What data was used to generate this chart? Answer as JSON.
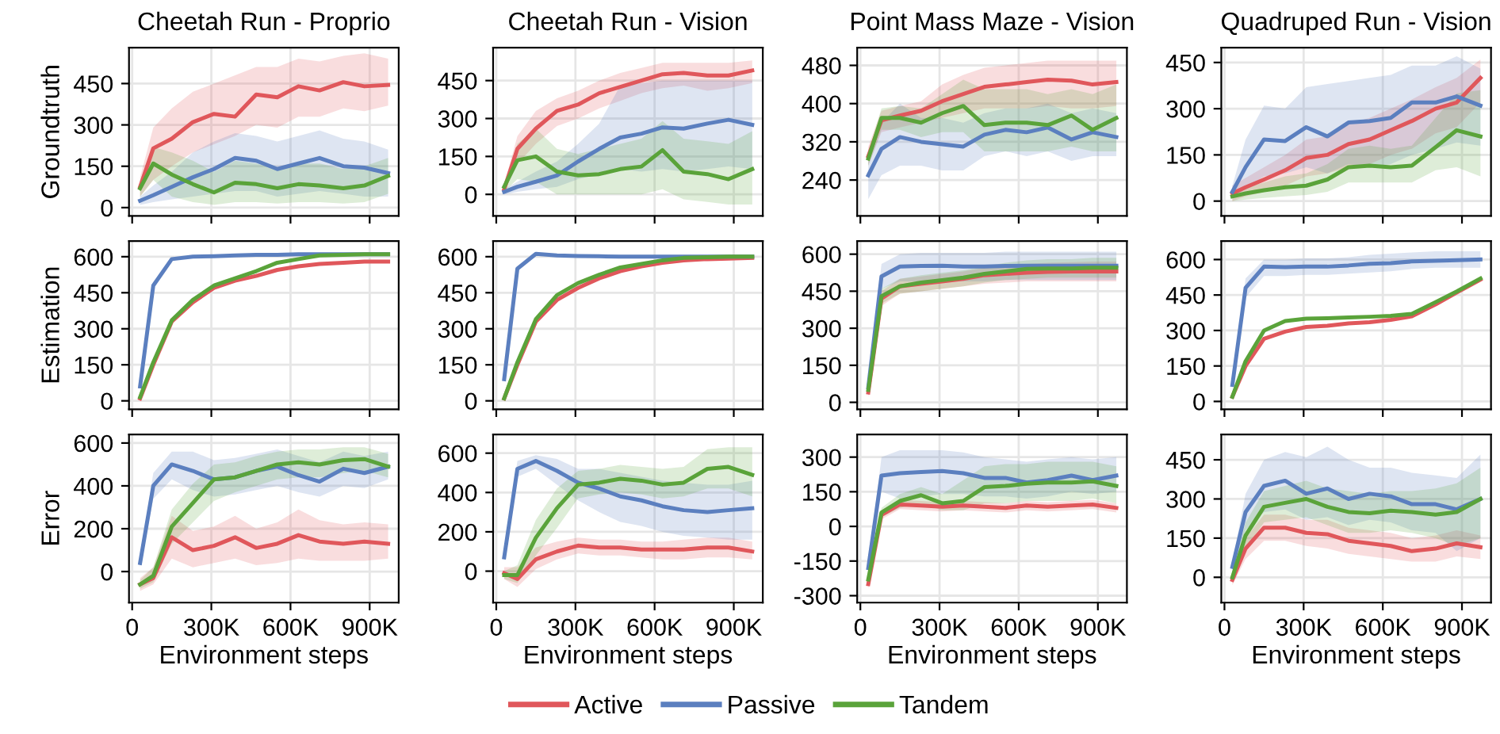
{
  "chart_data": [
    {
      "type": "line",
      "title": "Cheetah Run - Proprio",
      "ylabel": "Groundtruth",
      "x": [
        30000,
        80000,
        150000,
        230000,
        310000,
        390000,
        470000,
        550000,
        630000,
        710000,
        800000,
        880000,
        970000
      ],
      "xlim": [
        -12000,
        1010000
      ],
      "xticks": [
        {
          "value": 0,
          "label": null
        },
        {
          "value": 300000,
          "label": null
        },
        {
          "value": 600000,
          "label": null
        },
        {
          "value": 900000,
          "label": null
        }
      ],
      "ylim": [
        -30,
        580
      ],
      "yticks": [
        0,
        150,
        300,
        450
      ],
      "tick_labels": "y",
      "grid": true,
      "legend": "bottom",
      "series": [
        {
          "name": "Active",
          "color": "#e0575b",
          "values": [
            75,
            215,
            250,
            310,
            340,
            330,
            410,
            400,
            440,
            425,
            455,
            440,
            445
          ],
          "lower": [
            40,
            100,
            150,
            200,
            230,
            260,
            300,
            290,
            330,
            330,
            360,
            350,
            370
          ],
          "upper": [
            110,
            290,
            360,
            420,
            450,
            480,
            510,
            510,
            540,
            530,
            550,
            560,
            540
          ]
        },
        {
          "name": "Passive",
          "color": "#5b7fbf",
          "values": [
            25,
            45,
            75,
            110,
            140,
            180,
            170,
            140,
            160,
            180,
            150,
            145,
            125
          ],
          "lower": [
            10,
            20,
            30,
            40,
            50,
            60,
            60,
            40,
            50,
            60,
            50,
            40,
            40
          ],
          "upper": [
            40,
            80,
            130,
            200,
            240,
            270,
            260,
            240,
            260,
            280,
            250,
            240,
            210
          ]
        },
        {
          "name": "Tandem",
          "color": "#5aa33a",
          "values": [
            70,
            160,
            120,
            85,
            55,
            90,
            85,
            70,
            85,
            80,
            70,
            80,
            115
          ],
          "lower": [
            40,
            100,
            40,
            20,
            10,
            20,
            20,
            15,
            20,
            20,
            15,
            20,
            50
          ],
          "upper": [
            100,
            220,
            200,
            170,
            130,
            170,
            160,
            140,
            160,
            160,
            140,
            150,
            180
          ]
        }
      ]
    },
    {
      "type": "line",
      "title": "Cheetah Run - Vision",
      "x": [
        30000,
        80000,
        150000,
        230000,
        310000,
        390000,
        470000,
        550000,
        630000,
        710000,
        800000,
        880000,
        970000
      ],
      "xlim": [
        -12000,
        1010000
      ],
      "xticks": [
        {
          "value": 0,
          "label": null
        },
        {
          "value": 300000,
          "label": null
        },
        {
          "value": 600000,
          "label": null
        },
        {
          "value": 900000,
          "label": null
        }
      ],
      "ylim": [
        -85,
        580
      ],
      "yticks": [
        0,
        150,
        300,
        450
      ],
      "tick_labels": "y",
      "grid": true,
      "series": [
        {
          "color": "#e0575b",
          "values": [
            20,
            180,
            260,
            330,
            355,
            400,
            425,
            450,
            475,
            480,
            470,
            470,
            490
          ],
          "lower": [
            10,
            120,
            200,
            270,
            300,
            340,
            370,
            400,
            420,
            430,
            410,
            420,
            440
          ],
          "upper": [
            40,
            230,
            330,
            380,
            410,
            450,
            480,
            500,
            520,
            520,
            520,
            520,
            530
          ]
        },
        {
          "color": "#5b7fbf",
          "values": [
            10,
            30,
            50,
            75,
            130,
            180,
            225,
            240,
            265,
            260,
            280,
            295,
            275
          ],
          "lower": [
            0,
            10,
            20,
            30,
            60,
            80,
            100,
            90,
            100,
            90,
            100,
            110,
            100
          ],
          "upper": [
            20,
            50,
            90,
            130,
            200,
            280,
            430,
            440,
            450,
            450,
            450,
            450,
            450
          ]
        },
        {
          "color": "#5aa33a",
          "values": [
            30,
            135,
            150,
            90,
            75,
            80,
            100,
            110,
            175,
            90,
            80,
            60,
            100
          ],
          "lower": [
            10,
            60,
            50,
            0,
            0,
            0,
            0,
            0,
            20,
            -20,
            -30,
            -40,
            -40
          ],
          "upper": [
            50,
            200,
            260,
            180,
            160,
            180,
            200,
            220,
            290,
            220,
            210,
            200,
            250
          ]
        }
      ]
    },
    {
      "type": "line",
      "title": "Point Mass Maze - Vision",
      "x": [
        30000,
        80000,
        150000,
        230000,
        310000,
        390000,
        470000,
        550000,
        630000,
        710000,
        800000,
        880000,
        970000
      ],
      "xlim": [
        -12000,
        1010000
      ],
      "xticks": [
        {
          "value": 0,
          "label": null
        },
        {
          "value": 300000,
          "label": null
        },
        {
          "value": 600000,
          "label": null
        },
        {
          "value": 900000,
          "label": null
        }
      ],
      "ylim": [
        165,
        517
      ],
      "yticks": [
        240,
        320,
        400,
        480
      ],
      "tick_labels": "y",
      "grid": true,
      "series": [
        {
          "color": "#e0575b",
          "values": [
            290,
            365,
            375,
            385,
            405,
            420,
            435,
            440,
            445,
            450,
            448,
            440,
            445
          ],
          "lower": [
            270,
            340,
            350,
            360,
            370,
            380,
            390,
            390,
            390,
            395,
            390,
            390,
            395
          ],
          "upper": [
            310,
            385,
            395,
            405,
            440,
            460,
            475,
            480,
            485,
            490,
            490,
            490,
            490
          ]
        },
        {
          "color": "#5b7fbf",
          "values": [
            250,
            305,
            330,
            320,
            315,
            310,
            335,
            345,
            340,
            350,
            325,
            340,
            330
          ],
          "lower": [
            200,
            250,
            270,
            270,
            260,
            260,
            290,
            300,
            290,
            300,
            280,
            290,
            290
          ],
          "upper": [
            290,
            360,
            400,
            370,
            370,
            360,
            380,
            390,
            390,
            400,
            380,
            390,
            380
          ]
        },
        {
          "color": "#5aa33a",
          "values": [
            285,
            370,
            370,
            360,
            380,
            395,
            355,
            360,
            360,
            355,
            375,
            345,
            370
          ],
          "lower": [
            270,
            345,
            345,
            330,
            340,
            340,
            300,
            300,
            300,
            300,
            310,
            300,
            300
          ],
          "upper": [
            300,
            390,
            395,
            390,
            420,
            450,
            430,
            430,
            430,
            420,
            430,
            420,
            440
          ]
        }
      ]
    },
    {
      "type": "line",
      "title": "Quadruped Run - Vision",
      "x": [
        30000,
        80000,
        150000,
        230000,
        310000,
        390000,
        470000,
        550000,
        630000,
        710000,
        800000,
        880000,
        970000
      ],
      "xlim": [
        -12000,
        1010000
      ],
      "xticks": [
        {
          "value": 0,
          "label": null
        },
        {
          "value": 300000,
          "label": null
        },
        {
          "value": 600000,
          "label": null
        },
        {
          "value": 900000,
          "label": null
        }
      ],
      "ylim": [
        -48,
        498
      ],
      "yticks": [
        0,
        150,
        300,
        450
      ],
      "tick_labels": "y",
      "grid": true,
      "series": [
        {
          "color": "#e0575b",
          "values": [
            25,
            45,
            70,
            100,
            140,
            150,
            185,
            200,
            230,
            260,
            300,
            320,
            400
          ],
          "lower": [
            0,
            15,
            30,
            50,
            80,
            90,
            110,
            120,
            150,
            170,
            220,
            240,
            320
          ],
          "upper": [
            50,
            75,
            110,
            150,
            200,
            210,
            250,
            270,
            300,
            330,
            370,
            400,
            460
          ]
        },
        {
          "color": "#5b7fbf",
          "values": [
            30,
            110,
            200,
            195,
            240,
            210,
            255,
            260,
            270,
            320,
            320,
            340,
            310
          ],
          "lower": [
            10,
            40,
            80,
            90,
            110,
            90,
            120,
            110,
            120,
            150,
            170,
            190,
            180
          ],
          "upper": [
            50,
            200,
            310,
            300,
            370,
            380,
            390,
            400,
            410,
            440,
            440,
            470,
            430
          ]
        },
        {
          "color": "#5aa33a",
          "values": [
            15,
            25,
            35,
            45,
            50,
            70,
            110,
            115,
            110,
            115,
            175,
            230,
            210
          ],
          "lower": [
            0,
            5,
            10,
            15,
            20,
            30,
            60,
            60,
            60,
            60,
            100,
            110,
            80
          ],
          "upper": [
            30,
            45,
            60,
            80,
            90,
            120,
            170,
            180,
            170,
            180,
            270,
            350,
            360
          ]
        }
      ]
    },
    {
      "type": "line",
      "ylabel": "Estimation",
      "x": [
        30000,
        80000,
        150000,
        230000,
        310000,
        390000,
        470000,
        550000,
        630000,
        710000,
        800000,
        880000,
        970000
      ],
      "xlim": [
        -12000,
        1010000
      ],
      "xticks": [
        {
          "value": 0,
          "label": null
        },
        {
          "value": 300000,
          "label": null
        },
        {
          "value": 600000,
          "label": null
        },
        {
          "value": 900000,
          "label": null
        }
      ],
      "ylim": [
        -35,
        665
      ],
      "yticks": [
        0,
        150,
        300,
        450,
        600
      ],
      "tick_labels": "y",
      "grid": true,
      "series": [
        {
          "color": "#e0575b",
          "values": [
            10,
            150,
            330,
            410,
            470,
            500,
            520,
            545,
            560,
            570,
            575,
            580,
            580
          ]
        },
        {
          "color": "#5b7fbf",
          "values": [
            60,
            480,
            590,
            600,
            602,
            605,
            608,
            608,
            610,
            610,
            610,
            610,
            610
          ]
        },
        {
          "color": "#5aa33a",
          "values": [
            15,
            160,
            335,
            420,
            480,
            510,
            540,
            575,
            590,
            605,
            608,
            610,
            610
          ]
        }
      ]
    },
    {
      "type": "line",
      "x": [
        30000,
        80000,
        150000,
        230000,
        310000,
        390000,
        470000,
        550000,
        630000,
        710000,
        800000,
        880000,
        970000
      ],
      "xlim": [
        -12000,
        1010000
      ],
      "xticks": [
        {
          "value": 0,
          "label": null
        },
        {
          "value": 300000,
          "label": null
        },
        {
          "value": 600000,
          "label": null
        },
        {
          "value": 900000,
          "label": null
        }
      ],
      "ylim": [
        -35,
        665
      ],
      "yticks": [
        0,
        150,
        300,
        450,
        600
      ],
      "tick_labels": "y",
      "grid": true,
      "series": [
        {
          "color": "#e0575b",
          "values": [
            10,
            150,
            330,
            420,
            470,
            510,
            540,
            560,
            575,
            585,
            590,
            592,
            595
          ]
        },
        {
          "color": "#5b7fbf",
          "values": [
            90,
            550,
            612,
            605,
            603,
            602,
            600,
            600,
            600,
            600,
            600,
            600,
            600
          ]
        },
        {
          "color": "#5aa33a",
          "values": [
            10,
            160,
            340,
            440,
            490,
            525,
            555,
            570,
            585,
            595,
            598,
            600,
            600
          ]
        }
      ]
    },
    {
      "type": "line",
      "x": [
        30000,
        80000,
        150000,
        230000,
        310000,
        390000,
        470000,
        550000,
        630000,
        710000,
        800000,
        880000,
        970000
      ],
      "xlim": [
        -12000,
        1010000
      ],
      "xticks": [
        {
          "value": 0,
          "label": null
        },
        {
          "value": 300000,
          "label": null
        },
        {
          "value": 600000,
          "label": null
        },
        {
          "value": 900000,
          "label": null
        }
      ],
      "ylim": [
        -28,
        653
      ],
      "yticks": [
        0,
        150,
        300,
        450,
        600
      ],
      "tick_labels": "y",
      "grid": true,
      "series": [
        {
          "color": "#e0575b",
          "values": [
            40,
            420,
            470,
            480,
            490,
            500,
            515,
            520,
            525,
            528,
            530,
            530,
            530
          ],
          "lower": [
            20,
            390,
            440,
            450,
            460,
            470,
            480,
            485,
            490,
            490,
            490,
            490,
            490
          ],
          "upper": [
            60,
            450,
            500,
            510,
            520,
            530,
            545,
            555,
            560,
            565,
            568,
            570,
            570
          ]
        },
        {
          "color": "#5b7fbf",
          "values": [
            60,
            510,
            550,
            552,
            553,
            550,
            550,
            552,
            553,
            553,
            553,
            553,
            553
          ],
          "lower": [
            40,
            460,
            490,
            490,
            495,
            490,
            490,
            495,
            495,
            495,
            495,
            495,
            495
          ],
          "upper": [
            80,
            560,
            600,
            605,
            605,
            605,
            605,
            610,
            610,
            610,
            610,
            610,
            610
          ]
        },
        {
          "color": "#5aa33a",
          "values": [
            50,
            430,
            470,
            485,
            495,
            505,
            520,
            530,
            540,
            542,
            542,
            545,
            545
          ],
          "lower": [
            30,
            400,
            440,
            450,
            460,
            470,
            485,
            495,
            500,
            505,
            505,
            505,
            505
          ],
          "upper": [
            70,
            460,
            500,
            515,
            525,
            535,
            550,
            565,
            575,
            580,
            580,
            585,
            585
          ]
        }
      ]
    },
    {
      "type": "line",
      "x": [
        30000,
        80000,
        150000,
        230000,
        310000,
        390000,
        470000,
        550000,
        630000,
        710000,
        800000,
        880000,
        970000
      ],
      "xlim": [
        -12000,
        1010000
      ],
      "xticks": [
        {
          "value": 0,
          "label": null
        },
        {
          "value": 300000,
          "label": null
        },
        {
          "value": 600000,
          "label": null
        },
        {
          "value": 900000,
          "label": null
        }
      ],
      "ylim": [
        -33,
        678
      ],
      "yticks": [
        0,
        150,
        300,
        450,
        600
      ],
      "tick_labels": "y",
      "grid": true,
      "series": [
        {
          "color": "#e0575b",
          "values": [
            20,
            150,
            265,
            295,
            315,
            320,
            330,
            335,
            345,
            360,
            410,
            460,
            515
          ]
        },
        {
          "color": "#5b7fbf",
          "values": [
            70,
            480,
            570,
            568,
            570,
            570,
            575,
            582,
            585,
            592,
            595,
            597,
            600
          ],
          "lower": [
            50,
            440,
            530,
            530,
            535,
            535,
            540,
            545,
            550,
            560,
            565,
            565,
            565
          ],
          "upper": [
            90,
            520,
            600,
            600,
            605,
            605,
            610,
            620,
            625,
            630,
            635,
            635,
            635
          ]
        },
        {
          "color": "#5aa33a",
          "values": [
            20,
            170,
            300,
            340,
            350,
            352,
            355,
            358,
            362,
            370,
            420,
            465,
            520
          ]
        }
      ]
    },
    {
      "type": "line",
      "ylabel": "Error",
      "xlabel": "Environment steps",
      "x": [
        30000,
        80000,
        150000,
        230000,
        310000,
        390000,
        470000,
        550000,
        630000,
        710000,
        800000,
        880000,
        970000
      ],
      "xlim": [
        -12000,
        1010000
      ],
      "xticks": [
        0,
        {
          "value": 300000,
          "label": "300K"
        },
        {
          "value": 600000,
          "label": "600K"
        },
        {
          "value": 900000,
          "label": "900K"
        }
      ],
      "ylim": [
        -145,
        640
      ],
      "yticks": [
        0,
        200,
        400,
        600
      ],
      "grid": true,
      "series": [
        {
          "color": "#e0575b",
          "values": [
            -60,
            -30,
            160,
            100,
            120,
            160,
            110,
            130,
            170,
            140,
            130,
            140,
            130
          ],
          "lower": [
            -90,
            -60,
            60,
            20,
            40,
            60,
            30,
            40,
            60,
            50,
            50,
            50,
            60
          ],
          "upper": [
            -30,
            20,
            260,
            190,
            210,
            260,
            200,
            230,
            290,
            240,
            220,
            230,
            220
          ]
        },
        {
          "color": "#5b7fbf",
          "values": [
            40,
            400,
            500,
            470,
            430,
            440,
            470,
            490,
            450,
            420,
            480,
            460,
            490
          ],
          "lower": [
            20,
            340,
            430,
            380,
            350,
            360,
            380,
            400,
            370,
            350,
            400,
            390,
            430
          ],
          "upper": [
            60,
            460,
            560,
            560,
            520,
            530,
            550,
            570,
            540,
            510,
            560,
            540,
            560
          ]
        },
        {
          "color": "#5aa33a",
          "values": [
            -60,
            -20,
            210,
            320,
            430,
            440,
            470,
            500,
            510,
            500,
            520,
            525,
            490
          ],
          "lower": [
            -80,
            -50,
            130,
            230,
            330,
            370,
            400,
            430,
            440,
            440,
            460,
            470,
            440
          ],
          "upper": [
            -40,
            20,
            290,
            410,
            500,
            510,
            540,
            560,
            570,
            570,
            580,
            580,
            550
          ]
        }
      ]
    },
    {
      "type": "line",
      "xlabel": "Environment steps",
      "x": [
        30000,
        80000,
        150000,
        230000,
        310000,
        390000,
        470000,
        550000,
        630000,
        710000,
        800000,
        880000,
        970000
      ],
      "xlim": [
        -12000,
        1010000
      ],
      "xticks": [
        0,
        {
          "value": 300000,
          "label": "300K"
        },
        {
          "value": 600000,
          "label": "600K"
        },
        {
          "value": 900000,
          "label": "900K"
        }
      ],
      "ylim": [
        -160,
        695
      ],
      "yticks": [
        0,
        200,
        400,
        600
      ],
      "grid": true,
      "series": [
        {
          "color": "#e0575b",
          "values": [
            -10,
            -40,
            60,
            100,
            130,
            120,
            120,
            110,
            110,
            110,
            120,
            120,
            100
          ],
          "lower": [
            -40,
            -80,
            10,
            60,
            90,
            80,
            80,
            70,
            60,
            60,
            70,
            70,
            60
          ],
          "upper": [
            20,
            20,
            120,
            150,
            170,
            160,
            160,
            150,
            150,
            160,
            170,
            170,
            150
          ]
        },
        {
          "color": "#5b7fbf",
          "values": [
            70,
            520,
            560,
            510,
            450,
            420,
            380,
            360,
            330,
            310,
            300,
            310,
            320
          ],
          "lower": [
            50,
            480,
            520,
            440,
            360,
            300,
            250,
            230,
            200,
            180,
            170,
            160,
            160
          ],
          "upper": [
            90,
            560,
            590,
            570,
            520,
            520,
            500,
            480,
            460,
            450,
            440,
            440,
            460
          ]
        },
        {
          "color": "#5aa33a",
          "values": [
            -20,
            -20,
            170,
            320,
            440,
            450,
            470,
            460,
            440,
            450,
            520,
            530,
            490
          ],
          "lower": [
            -40,
            -60,
            80,
            220,
            370,
            390,
            400,
            390,
            370,
            380,
            420,
            420,
            380
          ],
          "upper": [
            0,
            30,
            260,
            420,
            510,
            520,
            540,
            530,
            520,
            530,
            620,
            630,
            630
          ]
        }
      ]
    },
    {
      "type": "line",
      "xlabel": "Environment steps",
      "x": [
        30000,
        80000,
        150000,
        230000,
        310000,
        390000,
        470000,
        550000,
        630000,
        710000,
        800000,
        880000,
        970000
      ],
      "xlim": [
        -12000,
        1010000
      ],
      "xticks": [
        0,
        {
          "value": 300000,
          "label": "300K"
        },
        {
          "value": 600000,
          "label": "600K"
        },
        {
          "value": 900000,
          "label": "900K"
        }
      ],
      "ylim": [
        -330,
        398
      ],
      "yticks": [
        -300,
        -150,
        0,
        150,
        300
      ],
      "grid": true,
      "series": [
        {
          "color": "#e0575b",
          "values": [
            -250,
            50,
            95,
            90,
            85,
            90,
            85,
            80,
            90,
            85,
            90,
            95,
            80
          ],
          "lower": [
            -270,
            30,
            75,
            70,
            65,
            70,
            65,
            60,
            70,
            65,
            70,
            75,
            60
          ],
          "upper": [
            -230,
            70,
            115,
            110,
            105,
            110,
            105,
            100,
            110,
            105,
            110,
            115,
            100
          ]
        },
        {
          "color": "#5b7fbf",
          "values": [
            -180,
            220,
            230,
            235,
            240,
            230,
            210,
            210,
            190,
            200,
            220,
            200,
            220
          ],
          "lower": [
            -200,
            150,
            120,
            130,
            140,
            140,
            130,
            130,
            120,
            130,
            150,
            140,
            150
          ],
          "upper": [
            -160,
            300,
            330,
            330,
            330,
            320,
            300,
            290,
            280,
            290,
            300,
            290,
            300
          ]
        },
        {
          "color": "#5aa33a",
          "values": [
            -230,
            60,
            110,
            135,
            100,
            110,
            170,
            175,
            185,
            190,
            190,
            195,
            175
          ],
          "lower": [
            -250,
            40,
            80,
            100,
            70,
            70,
            100,
            100,
            110,
            110,
            110,
            120,
            100
          ],
          "upper": [
            -210,
            80,
            140,
            170,
            140,
            200,
            260,
            270,
            270,
            280,
            280,
            280,
            260
          ]
        }
      ]
    },
    {
      "type": "line",
      "xlabel": "Environment steps",
      "x": [
        30000,
        80000,
        150000,
        230000,
        310000,
        390000,
        470000,
        550000,
        630000,
        710000,
        800000,
        880000,
        970000
      ],
      "xlim": [
        -12000,
        1010000
      ],
      "xticks": [
        0,
        {
          "value": 300000,
          "label": "300K"
        },
        {
          "value": 600000,
          "label": "600K"
        },
        {
          "value": 900000,
          "label": "900K"
        }
      ],
      "ylim": [
        -97,
        547
      ],
      "yticks": [
        0,
        150,
        300,
        450
      ],
      "grid": true,
      "series": [
        {
          "color": "#e0575b",
          "values": [
            -10,
            110,
            190,
            190,
            170,
            165,
            140,
            130,
            120,
            100,
            110,
            130,
            115
          ],
          "lower": [
            -30,
            70,
            140,
            140,
            120,
            110,
            90,
            80,
            70,
            60,
            60,
            80,
            70
          ],
          "upper": [
            10,
            150,
            240,
            240,
            220,
            220,
            190,
            180,
            170,
            150,
            160,
            180,
            160
          ]
        },
        {
          "color": "#5b7fbf",
          "values": [
            40,
            250,
            350,
            370,
            320,
            340,
            300,
            320,
            310,
            280,
            280,
            260,
            300
          ],
          "lower": [
            20,
            180,
            250,
            260,
            220,
            230,
            200,
            220,
            210,
            180,
            170,
            100,
            150
          ],
          "upper": [
            60,
            320,
            450,
            480,
            460,
            500,
            450,
            420,
            420,
            400,
            390,
            380,
            470
          ]
        },
        {
          "color": "#5aa33a",
          "values": [
            0,
            160,
            270,
            285,
            300,
            270,
            250,
            245,
            255,
            250,
            240,
            250,
            300
          ],
          "lower": [
            -20,
            110,
            210,
            220,
            230,
            200,
            170,
            170,
            180,
            170,
            150,
            120,
            150
          ],
          "upper": [
            20,
            210,
            330,
            350,
            370,
            340,
            330,
            320,
            330,
            330,
            340,
            360,
            420
          ]
        }
      ]
    }
  ]
}
